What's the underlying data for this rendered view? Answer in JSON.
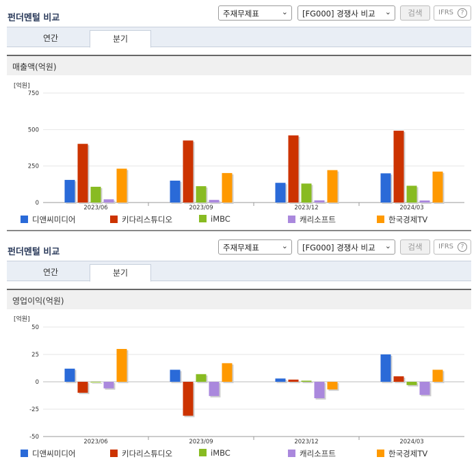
{
  "page": {
    "title": "펀더멘털 비교",
    "select_statement": "주재무제표",
    "select_compare": "[FG000] 경쟁사 비교",
    "search_label": "검색",
    "ifrs_label": "IFRS",
    "ifrs_help": "?",
    "tabs": [
      "연간",
      "분기"
    ]
  },
  "legend": [
    {
      "name": "디앤씨미디어",
      "color": "#2a6ad8"
    },
    {
      "name": "키다리스튜디오",
      "color": "#cc3300"
    },
    {
      "name": "iMBC",
      "color": "#88bb22"
    },
    {
      "name": "캐리소프트",
      "color": "#aa88dd"
    },
    {
      "name": "한국경제TV",
      "color": "#ff9900"
    }
  ],
  "chart_data": [
    {
      "type": "bar",
      "title": "매출액(억원)",
      "unit": "[억원]",
      "categories": [
        "2023/06",
        "2023/09",
        "2023/12",
        "2024/03"
      ],
      "ylim": [
        0,
        750
      ],
      "yticks": [
        "0",
        "250",
        "500",
        "750"
      ],
      "series": [
        {
          "name": "디앤씨미디어",
          "values": [
            155,
            150,
            135,
            200
          ]
        },
        {
          "name": "키다리스튜디오",
          "values": [
            402,
            425,
            460,
            492
          ]
        },
        {
          "name": "iMBC",
          "values": [
            108,
            112,
            130,
            115
          ]
        },
        {
          "name": "캐리소프트",
          "values": [
            22,
            18,
            15,
            14
          ]
        },
        {
          "name": "한국경제TV",
          "values": [
            232,
            202,
            222,
            212
          ]
        }
      ]
    },
    {
      "type": "bar",
      "title": "영업이익(억원)",
      "unit": "[억원]",
      "categories": [
        "2023/06",
        "2023/09",
        "2023/12",
        "2024/03"
      ],
      "ylim": [
        -50,
        50
      ],
      "yticks": [
        "-50",
        "-25",
        "0",
        "25",
        "50"
      ],
      "series": [
        {
          "name": "디앤씨미디어",
          "values": [
            12,
            11,
            3,
            25
          ]
        },
        {
          "name": "키다리스튜디오",
          "values": [
            -10,
            -31,
            2,
            5
          ]
        },
        {
          "name": "iMBC",
          "values": [
            0,
            7,
            1,
            -3
          ]
        },
        {
          "name": "캐리소프트",
          "values": [
            -6,
            -13,
            -15,
            -12
          ]
        },
        {
          "name": "한국경제TV",
          "values": [
            30,
            17,
            -7,
            11
          ]
        }
      ]
    }
  ]
}
